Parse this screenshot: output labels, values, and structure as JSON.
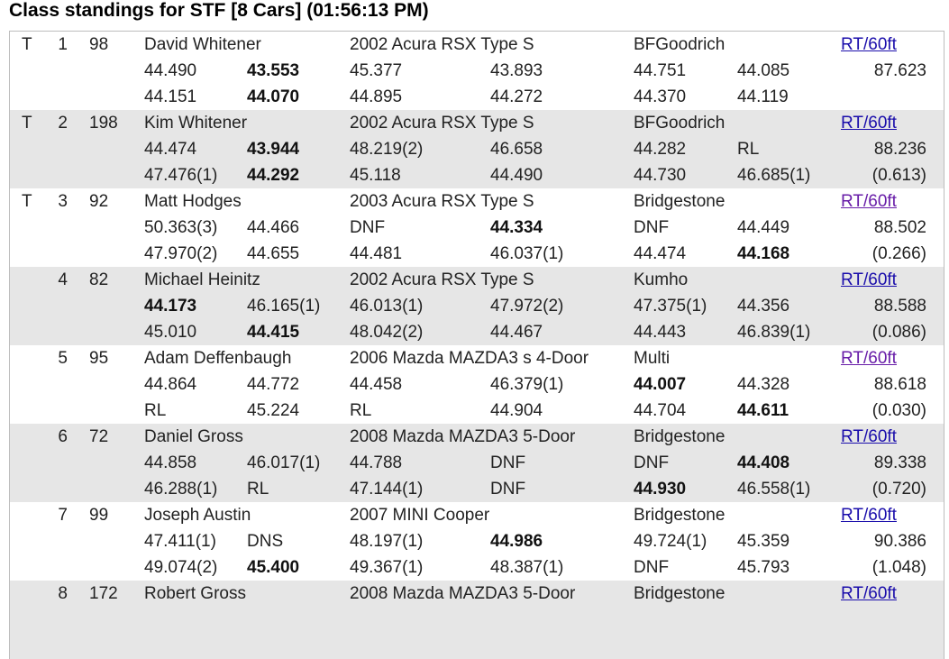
{
  "page": {
    "title": "Class standings for STF [8 Cars] (01:56:13 PM)"
  },
  "colors": {
    "row_alt_bg": "#e6e6e6",
    "link": "#1a0dab",
    "link_visited": "#681da8",
    "border": "#bdbdbd"
  },
  "entries": [
    {
      "trophy": "T",
      "pos": "1",
      "number": "98",
      "driver": "David Whitener",
      "car": "2002 Acura RSX Type S",
      "tire": "BFGoodrich",
      "link": "RT/60ft",
      "link_visited": false,
      "total": "87.623",
      "diff": "",
      "row1": [
        {
          "t": "44.490",
          "b": false
        },
        {
          "t": "43.553",
          "b": true
        },
        {
          "t": "45.377",
          "b": false
        },
        {
          "t": "43.893",
          "b": false
        },
        {
          "t": "44.751",
          "b": false
        },
        {
          "t": "44.085",
          "b": false
        }
      ],
      "row2": [
        {
          "t": "44.151",
          "b": false
        },
        {
          "t": "44.070",
          "b": true
        },
        {
          "t": "44.895",
          "b": false
        },
        {
          "t": "44.272",
          "b": false
        },
        {
          "t": "44.370",
          "b": false
        },
        {
          "t": "44.119",
          "b": false
        }
      ]
    },
    {
      "trophy": "T",
      "pos": "2",
      "number": "198",
      "driver": "Kim Whitener",
      "car": "2002 Acura RSX Type S",
      "tire": "BFGoodrich",
      "link": "RT/60ft",
      "link_visited": false,
      "total": "88.236",
      "diff": "(0.613)",
      "row1": [
        {
          "t": "44.474",
          "b": false
        },
        {
          "t": "43.944",
          "b": true
        },
        {
          "t": "48.219(2)",
          "b": false
        },
        {
          "t": "46.658",
          "b": false
        },
        {
          "t": "44.282",
          "b": false
        },
        {
          "t": "RL",
          "b": false
        }
      ],
      "row2": [
        {
          "t": "47.476(1)",
          "b": false
        },
        {
          "t": "44.292",
          "b": true
        },
        {
          "t": "45.118",
          "b": false
        },
        {
          "t": "44.490",
          "b": false
        },
        {
          "t": "44.730",
          "b": false
        },
        {
          "t": "46.685(1)",
          "b": false
        }
      ]
    },
    {
      "trophy": "T",
      "pos": "3",
      "number": "92",
      "driver": "Matt Hodges",
      "car": "2003 Acura RSX Type S",
      "tire": "Bridgestone",
      "link": "RT/60ft",
      "link_visited": true,
      "total": "88.502",
      "diff": "(0.266)",
      "row1": [
        {
          "t": "50.363(3)",
          "b": false
        },
        {
          "t": "44.466",
          "b": false
        },
        {
          "t": "DNF",
          "b": false
        },
        {
          "t": "44.334",
          "b": true
        },
        {
          "t": "DNF",
          "b": false
        },
        {
          "t": "44.449",
          "b": false
        }
      ],
      "row2": [
        {
          "t": "47.970(2)",
          "b": false
        },
        {
          "t": "44.655",
          "b": false
        },
        {
          "t": "44.481",
          "b": false
        },
        {
          "t": "46.037(1)",
          "b": false
        },
        {
          "t": "44.474",
          "b": false
        },
        {
          "t": "44.168",
          "b": true
        }
      ]
    },
    {
      "trophy": "",
      "pos": "4",
      "number": "82",
      "driver": "Michael Heinitz",
      "car": "2002 Acura RSX Type S",
      "tire": "Kumho",
      "link": "RT/60ft",
      "link_visited": false,
      "total": "88.588",
      "diff": "(0.086)",
      "row1": [
        {
          "t": "44.173",
          "b": true
        },
        {
          "t": "46.165(1)",
          "b": false
        },
        {
          "t": "46.013(1)",
          "b": false
        },
        {
          "t": "47.972(2)",
          "b": false
        },
        {
          "t": "47.375(1)",
          "b": false
        },
        {
          "t": "44.356",
          "b": false
        }
      ],
      "row2": [
        {
          "t": "45.010",
          "b": false
        },
        {
          "t": "44.415",
          "b": true
        },
        {
          "t": "48.042(2)",
          "b": false
        },
        {
          "t": "44.467",
          "b": false
        },
        {
          "t": "44.443",
          "b": false
        },
        {
          "t": "46.839(1)",
          "b": false
        }
      ]
    },
    {
      "trophy": "",
      "pos": "5",
      "number": "95",
      "driver": "Adam Deffenbaugh",
      "car": "2006 Mazda MAZDA3 s 4-Door",
      "tire": "Multi",
      "link": "RT/60ft",
      "link_visited": true,
      "total": "88.618",
      "diff": "(0.030)",
      "row1": [
        {
          "t": "44.864",
          "b": false
        },
        {
          "t": "44.772",
          "b": false
        },
        {
          "t": "44.458",
          "b": false
        },
        {
          "t": "46.379(1)",
          "b": false
        },
        {
          "t": "44.007",
          "b": true
        },
        {
          "t": "44.328",
          "b": false
        }
      ],
      "row2": [
        {
          "t": "RL",
          "b": false
        },
        {
          "t": "45.224",
          "b": false
        },
        {
          "t": "RL",
          "b": false
        },
        {
          "t": "44.904",
          "b": false
        },
        {
          "t": "44.704",
          "b": false
        },
        {
          "t": "44.611",
          "b": true
        }
      ]
    },
    {
      "trophy": "",
      "pos": "6",
      "number": "72",
      "driver": "Daniel Gross",
      "car": "2008 Mazda MAZDA3 5-Door",
      "tire": "Bridgestone",
      "link": "RT/60ft",
      "link_visited": false,
      "total": "89.338",
      "diff": "(0.720)",
      "row1": [
        {
          "t": "44.858",
          "b": false
        },
        {
          "t": "46.017(1)",
          "b": false
        },
        {
          "t": "44.788",
          "b": false
        },
        {
          "t": "DNF",
          "b": false
        },
        {
          "t": "DNF",
          "b": false
        },
        {
          "t": "44.408",
          "b": true
        }
      ],
      "row2": [
        {
          "t": "46.288(1)",
          "b": false
        },
        {
          "t": "RL",
          "b": false
        },
        {
          "t": "47.144(1)",
          "b": false
        },
        {
          "t": "DNF",
          "b": false
        },
        {
          "t": "44.930",
          "b": true
        },
        {
          "t": "46.558(1)",
          "b": false
        }
      ]
    },
    {
      "trophy": "",
      "pos": "7",
      "number": "99",
      "driver": "Joseph Austin",
      "car": "2007 MINI Cooper",
      "tire": "Bridgestone",
      "link": "RT/60ft",
      "link_visited": false,
      "total": "90.386",
      "diff": "(1.048)",
      "row1": [
        {
          "t": "47.411(1)",
          "b": false
        },
        {
          "t": "DNS",
          "b": false
        },
        {
          "t": "48.197(1)",
          "b": false
        },
        {
          "t": "44.986",
          "b": true
        },
        {
          "t": "49.724(1)",
          "b": false
        },
        {
          "t": "45.359",
          "b": false
        }
      ],
      "row2": [
        {
          "t": "49.074(2)",
          "b": false
        },
        {
          "t": "45.400",
          "b": true
        },
        {
          "t": "49.367(1)",
          "b": false
        },
        {
          "t": "48.387(1)",
          "b": false
        },
        {
          "t": "DNF",
          "b": false
        },
        {
          "t": "45.793",
          "b": false
        }
      ]
    },
    {
      "trophy": "",
      "pos": "8",
      "number": "172",
      "driver": "Robert Gross",
      "car": "2008 Mazda MAZDA3 5-Door",
      "tire": "Bridgestone",
      "link": "RT/60ft",
      "link_visited": false,
      "total": "",
      "diff": "",
      "row1": [],
      "row2": []
    }
  ]
}
